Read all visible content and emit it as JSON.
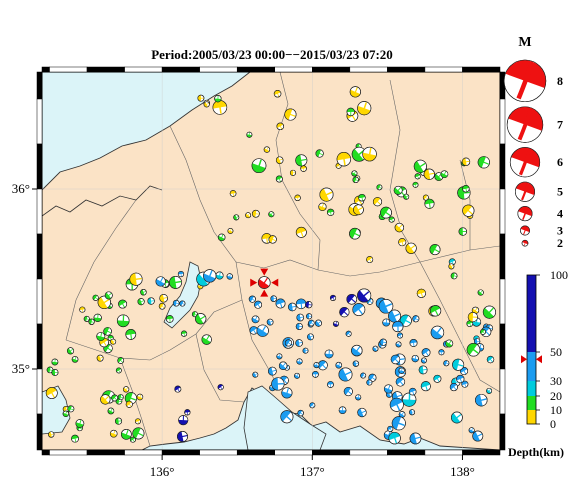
{
  "title": "Period:2005/03/23 00:00−−2015/03/23 07:20",
  "map": {
    "lon_range": [
      135.2,
      138.25
    ],
    "lat_range": [
      34.55,
      36.65
    ],
    "lon_ticks": [
      {
        "value": 136,
        "label": "136°"
      },
      {
        "value": 137,
        "label": "137°"
      },
      {
        "value": 138,
        "label": "138°"
      }
    ],
    "lat_ticks": [
      {
        "value": 36,
        "label": "36°"
      },
      {
        "value": 35,
        "label": "35°"
      }
    ],
    "colors": {
      "land": "#fbe3c6",
      "sea": "#dbf4f8",
      "lake": "#dbf4f8",
      "coast": "#333333",
      "border": "#555555",
      "beach_light": "#ffffff"
    }
  },
  "magnitude_legend": {
    "title": "M",
    "entries": [
      {
        "label": "8",
        "mag": 8
      },
      {
        "label": "7",
        "mag": 7
      },
      {
        "label": "6",
        "mag": 6
      },
      {
        "label": "5",
        "mag": 5
      },
      {
        "label": "4",
        "mag": 4
      },
      {
        "label": "3",
        "mag": 3
      },
      {
        "label": "2",
        "mag": 2
      }
    ],
    "color": "#ee1111"
  },
  "depth_scale": {
    "ticks": [
      {
        "value": 0,
        "label": "0"
      },
      {
        "value": 10,
        "label": "10"
      },
      {
        "value": 20,
        "label": "20"
      },
      {
        "value": 30,
        "label": "30"
      },
      {
        "value": 50,
        "label": "50"
      },
      {
        "value": 100,
        "label": "100"
      }
    ],
    "bands": [
      {
        "from": 0,
        "to": 10,
        "color": "#ffd700"
      },
      {
        "from": 10,
        "to": 20,
        "color": "#22dd22"
      },
      {
        "from": 20,
        "to": 30,
        "color": "#00ccdd"
      },
      {
        "from": 30,
        "to": 50,
        "color": "#1b9cf0"
      },
      {
        "from": 50,
        "to": 100,
        "color": "#1410b0"
      }
    ],
    "label": "Depth(km)",
    "marker_depth": 45,
    "marker_color": "#dd0000"
  },
  "highlight_event": {
    "lon": 136.68,
    "lat": 35.48,
    "mag": 4,
    "color": "#ee1111"
  }
}
